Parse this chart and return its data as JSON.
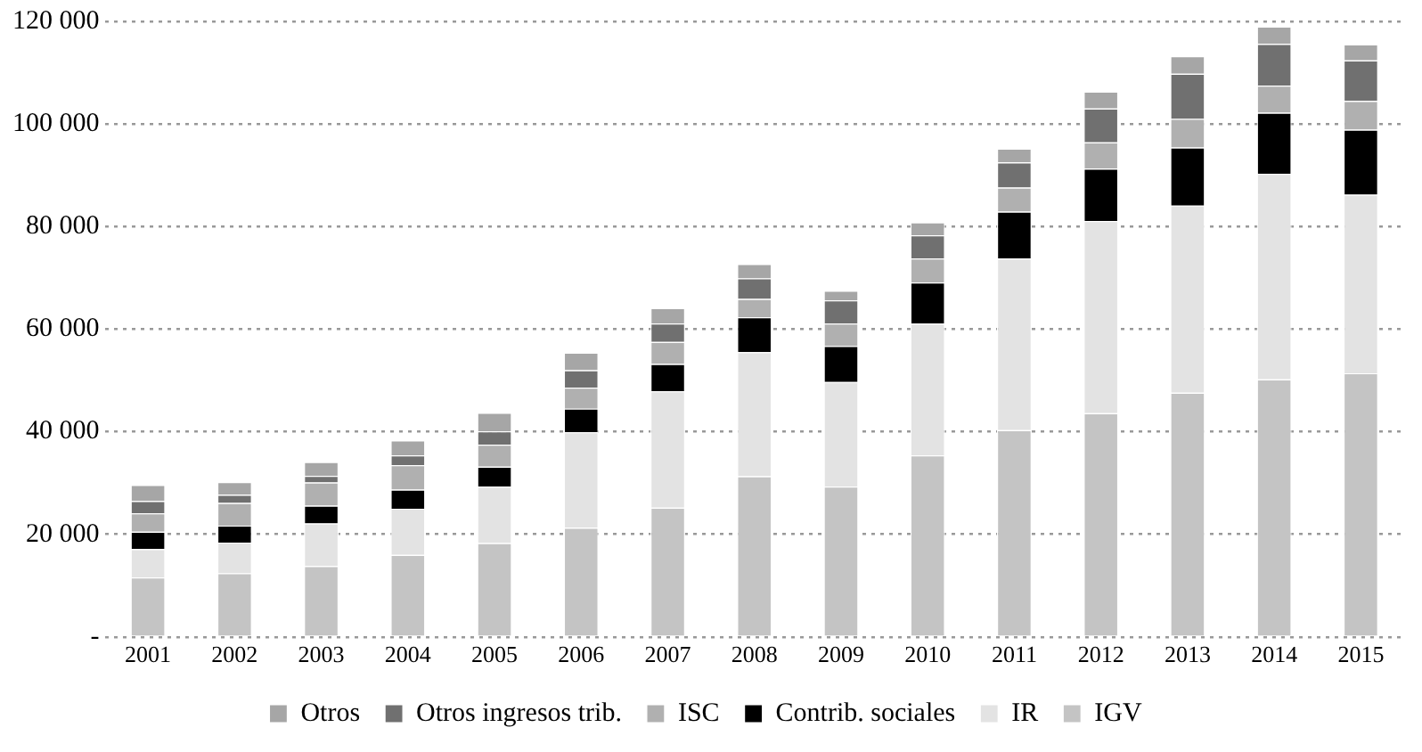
{
  "chart_data": {
    "type": "bar",
    "stacked": true,
    "categories": [
      "2001",
      "2002",
      "2003",
      "2004",
      "2005",
      "2006",
      "2007",
      "2008",
      "2009",
      "2010",
      "2011",
      "2012",
      "2013",
      "2014",
      "2015"
    ],
    "series": [
      {
        "name": "IGV",
        "color": "#c4c4c4",
        "values": [
          11600,
          12400,
          13800,
          16000,
          18300,
          21300,
          25200,
          31300,
          29300,
          35400,
          40300,
          43600,
          47600,
          50200,
          51400
        ]
      },
      {
        "name": "IR",
        "color": "#e3e3e3",
        "values": [
          5500,
          6000,
          8300,
          9000,
          11000,
          18600,
          22700,
          24200,
          20400,
          25700,
          33500,
          37500,
          36500,
          40100,
          34800
        ]
      },
      {
        "name": "Contrib. sociales",
        "color": "#000000",
        "values": [
          3400,
          3300,
          3500,
          3700,
          3900,
          4600,
          5300,
          6800,
          7000,
          8000,
          9100,
          10200,
          11300,
          11900,
          12700
        ]
      },
      {
        "name": "ISC",
        "color": "#b0b0b0",
        "values": [
          3600,
          4400,
          4500,
          4800,
          4300,
          4100,
          4300,
          3600,
          4400,
          4700,
          4700,
          5100,
          5600,
          5300,
          5600
        ]
      },
      {
        "name": "Otros ingresos trib.",
        "color": "#707070",
        "values": [
          2400,
          1600,
          1300,
          1900,
          2600,
          3400,
          3600,
          4000,
          4500,
          4500,
          4900,
          6600,
          8800,
          8100,
          7900
        ]
      },
      {
        "name": "Otros",
        "color": "#a6a6a6",
        "values": [
          3100,
          2500,
          2700,
          2900,
          3600,
          3400,
          3000,
          2800,
          1900,
          2500,
          2700,
          3300,
          3400,
          3400,
          3100
        ]
      }
    ],
    "ylim": [
      0,
      120000
    ],
    "yticks": [
      {
        "value": 0,
        "label": "-"
      },
      {
        "value": 20000,
        "label": "20 000"
      },
      {
        "value": 40000,
        "label": "40 000"
      },
      {
        "value": 60000,
        "label": "60 000"
      },
      {
        "value": 80000,
        "label": "80 000"
      },
      {
        "value": 100000,
        "label": "100 000"
      },
      {
        "value": 120000,
        "label": "120 000"
      }
    ],
    "grid": "y",
    "legend": "bottom"
  }
}
